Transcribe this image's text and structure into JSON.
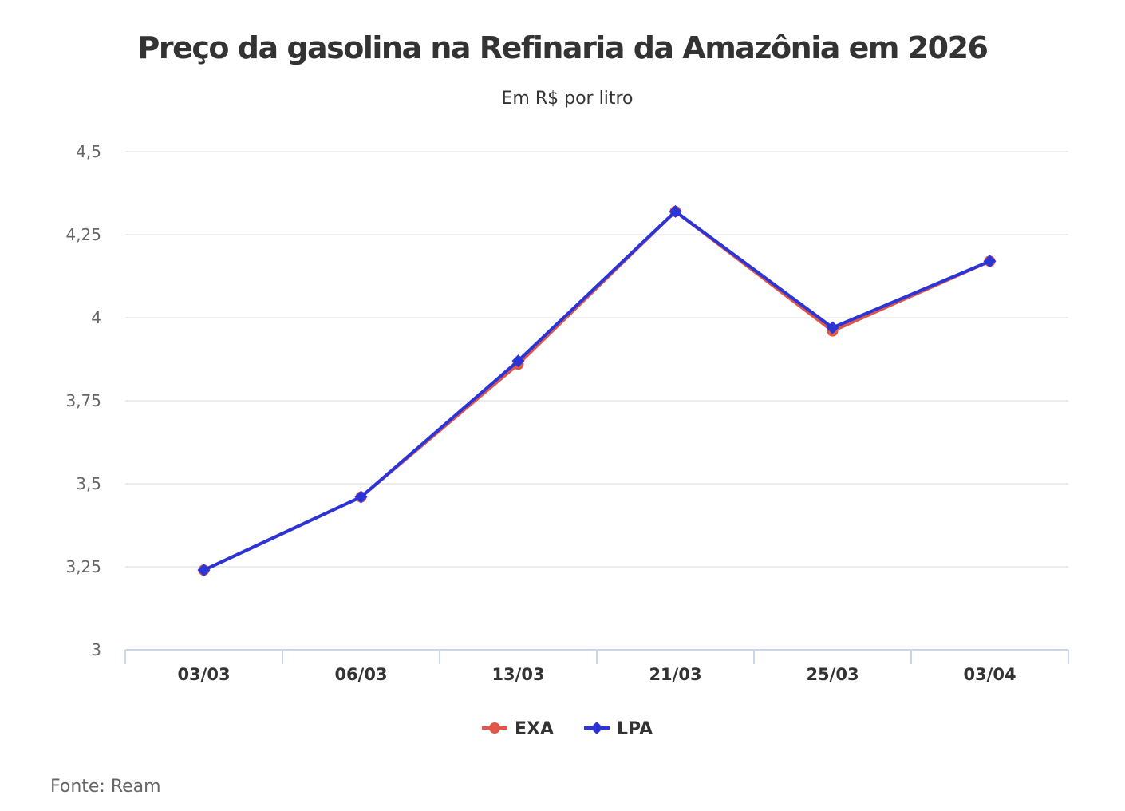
{
  "chart_data": {
    "type": "line",
    "title": "Preço da gasolina na Refinaria da Amazônia em 2026",
    "subtitle": "Em R$ por litro",
    "source": "Fonte: Ream",
    "categories": [
      "03/03",
      "06/03",
      "13/03",
      "21/03",
      "25/03",
      "03/04"
    ],
    "yticks": [
      "3",
      "3,25",
      "3,5",
      "3,75",
      "4",
      "4,25",
      "4,5"
    ],
    "ylim": [
      3,
      4.5
    ],
    "grid": true,
    "legend_position": "bottom",
    "series": [
      {
        "name": "EXA",
        "color": "#e0574a",
        "marker": "circle",
        "values": [
          3.24,
          3.46,
          3.86,
          4.32,
          3.96,
          4.17
        ]
      },
      {
        "name": "LPA",
        "color": "#2b35d6",
        "marker": "diamond",
        "values": [
          3.24,
          3.46,
          3.87,
          4.32,
          3.97,
          4.17
        ]
      }
    ]
  }
}
